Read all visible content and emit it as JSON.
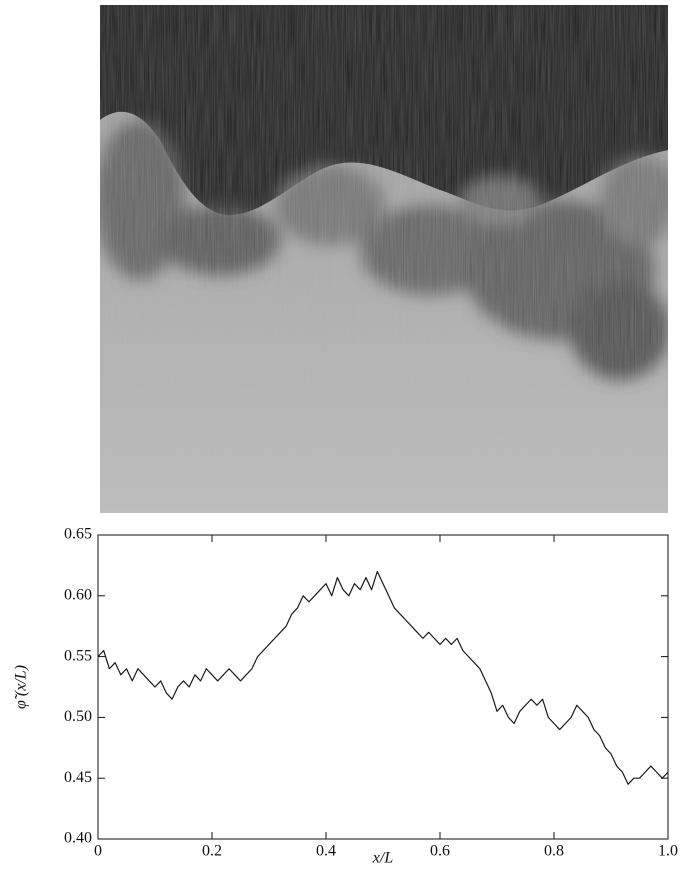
{
  "chart_data": {
    "type": "line",
    "xlabel": "x/L",
    "ylabel": "φ̃ (x/L)",
    "x": [
      0,
      0.01,
      0.02,
      0.03,
      0.04,
      0.05,
      0.06,
      0.07,
      0.08,
      0.09,
      0.1,
      0.11,
      0.12,
      0.13,
      0.14,
      0.15,
      0.16,
      0.17,
      0.18,
      0.19,
      0.2,
      0.21,
      0.22,
      0.23,
      0.24,
      0.25,
      0.26,
      0.27,
      0.28,
      0.29,
      0.3,
      0.31,
      0.32,
      0.33,
      0.34,
      0.35,
      0.36,
      0.37,
      0.38,
      0.39,
      0.4,
      0.41,
      0.42,
      0.43,
      0.44,
      0.45,
      0.46,
      0.47,
      0.48,
      0.49,
      0.5,
      0.51,
      0.52,
      0.53,
      0.54,
      0.55,
      0.56,
      0.57,
      0.58,
      0.59,
      0.6,
      0.61,
      0.62,
      0.63,
      0.64,
      0.65,
      0.66,
      0.67,
      0.68,
      0.69,
      0.7,
      0.71,
      0.72,
      0.73,
      0.74,
      0.75,
      0.76,
      0.77,
      0.78,
      0.79,
      0.8,
      0.81,
      0.82,
      0.83,
      0.84,
      0.85,
      0.86,
      0.87,
      0.88,
      0.89,
      0.9,
      0.91,
      0.92,
      0.93,
      0.94,
      0.95,
      0.96,
      0.97,
      0.98,
      0.99,
      1
    ],
    "series": [
      {
        "color": "#1a1a1a",
        "values": [
          0.55,
          0.555,
          0.54,
          0.545,
          0.535,
          0.54,
          0.53,
          0.54,
          0.535,
          0.53,
          0.525,
          0.53,
          0.52,
          0.515,
          0.525,
          0.53,
          0.525,
          0.535,
          0.53,
          0.54,
          0.535,
          0.53,
          0.535,
          0.54,
          0.535,
          0.53,
          0.535,
          0.54,
          0.55,
          0.555,
          0.56,
          0.565,
          0.57,
          0.575,
          0.585,
          0.59,
          0.6,
          0.595,
          0.6,
          0.605,
          0.61,
          0.6,
          0.615,
          0.605,
          0.6,
          0.61,
          0.605,
          0.615,
          0.605,
          0.62,
          0.61,
          0.6,
          0.59,
          0.585,
          0.58,
          0.575,
          0.57,
          0.565,
          0.57,
          0.565,
          0.56,
          0.565,
          0.56,
          0.565,
          0.555,
          0.55,
          0.545,
          0.54,
          0.53,
          0.52,
          0.505,
          0.51,
          0.5,
          0.495,
          0.505,
          0.51,
          0.515,
          0.51,
          0.515,
          0.5,
          0.495,
          0.49,
          0.495,
          0.5,
          0.51,
          0.505,
          0.5,
          0.49,
          0.485,
          0.475,
          0.47,
          0.46,
          0.455,
          0.445,
          0.45,
          0.45,
          0.455,
          0.46,
          0.455,
          0.45,
          0.455
        ]
      }
    ],
    "xlim": [
      0,
      1
    ],
    "xticks": [
      0,
      0.2,
      0.4,
      0.6,
      0.8,
      {
        "value": 1,
        "label": "1.0"
      }
    ],
    "ylim": [
      0.4,
      0.65
    ],
    "yticks": [
      {
        "value": 0.4,
        "label": "0.40"
      },
      0.45,
      {
        "value": 0.5,
        "label": "0.50"
      },
      0.55,
      {
        "value": 0.6,
        "label": "0.60"
      },
      0.65
    ]
  }
}
